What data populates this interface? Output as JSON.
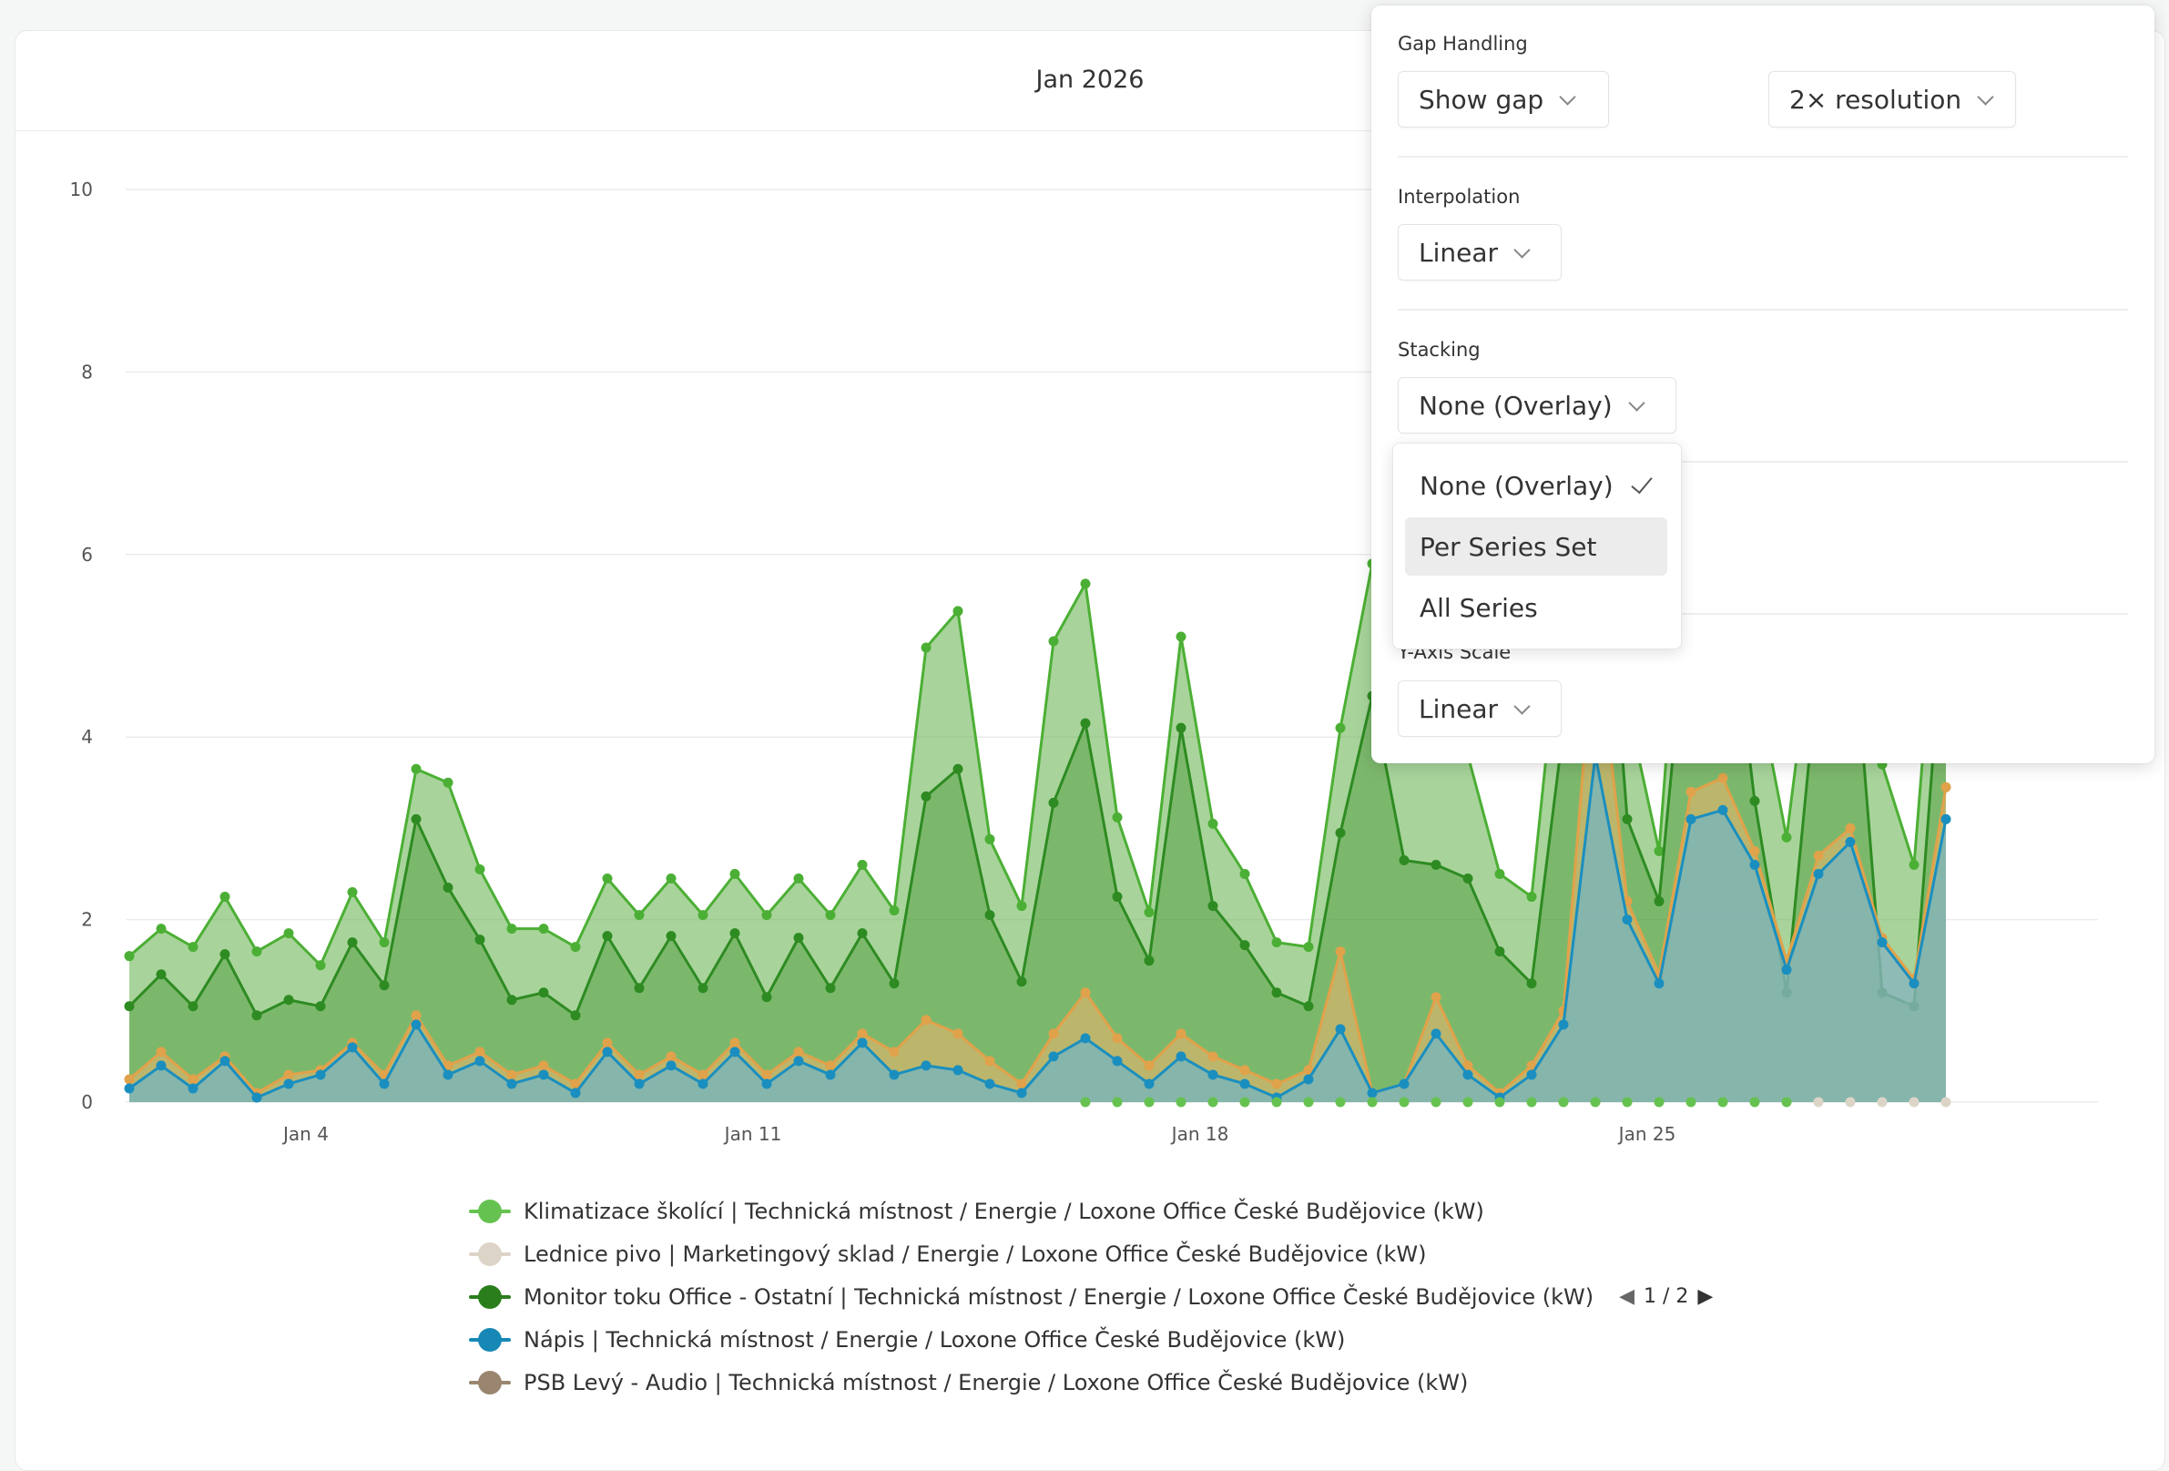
{
  "chart_title": "Jan 2026",
  "chart_data": {
    "type": "area",
    "ylim": [
      0,
      10
    ],
    "y_ticks": [
      "0",
      "2",
      "4",
      "6",
      "8",
      "10"
    ],
    "x_ticks": [
      "Jan  4",
      "Jan 11",
      "Jan 18",
      "Jan 25"
    ],
    "grid": true,
    "stacking": "None (Overlay)",
    "series": [
      {
        "name": "Klimatizace školící | Technická místnost / Energie / Loxone Office České Budějovice (kW)",
        "color": "#4caf35",
        "values": [
          1.6,
          1.9,
          1.7,
          2.25,
          1.65,
          1.85,
          1.5,
          2.3,
          1.75,
          3.65,
          3.5,
          2.55,
          1.9,
          1.9,
          1.7,
          2.45,
          2.05,
          2.45,
          2.05,
          2.5,
          2.05,
          2.45,
          2.05,
          2.6,
          2.1,
          4.98,
          5.38,
          2.88,
          2.15,
          5.05,
          5.68,
          3.12,
          2.08,
          5.1,
          3.05,
          2.5,
          1.75,
          1.7,
          4.1,
          5.9,
          4.1,
          4.55,
          3.8,
          2.5,
          2.25,
          5.6,
          9.35,
          4.35,
          2.75,
          7.3,
          7.65,
          4.7,
          2.9,
          5.65,
          6.75,
          3.7,
          2.6,
          6.95
        ]
      },
      {
        "name": "Monitor toku Office - Ostatní | Technická místnost / Energie / Loxone Office České Budějovice (kW)",
        "color": "#2e8b22",
        "values": [
          1.05,
          1.4,
          1.05,
          1.62,
          0.95,
          1.12,
          1.05,
          1.75,
          1.28,
          3.1,
          2.35,
          1.78,
          1.12,
          1.2,
          0.95,
          1.82,
          1.25,
          1.82,
          1.25,
          1.85,
          1.15,
          1.8,
          1.25,
          1.85,
          1.3,
          3.35,
          3.65,
          2.05,
          1.32,
          3.28,
          4.15,
          2.25,
          1.55,
          4.1,
          2.15,
          1.72,
          1.2,
          1.05,
          2.95,
          4.45,
          2.65,
          2.6,
          2.45,
          1.65,
          1.3,
          4.1,
          7.7,
          3.1,
          2.2,
          5.85,
          6.2,
          3.3,
          1.2,
          4.8,
          5.6,
          1.2,
          1.05,
          5.65
        ]
      },
      {
        "name": "Nápis | Technická místnost / Energie / Loxone Office České Budějovice (kW)",
        "color": "#1a8fbf",
        "values": [
          0.15,
          0.4,
          0.15,
          0.45,
          0.05,
          0.2,
          0.3,
          0.6,
          0.2,
          0.85,
          0.3,
          0.45,
          0.2,
          0.3,
          0.1,
          0.55,
          0.2,
          0.4,
          0.2,
          0.55,
          0.2,
          0.45,
          0.3,
          0.65,
          0.3,
          0.4,
          0.35,
          0.2,
          0.1,
          0.5,
          0.7,
          0.45,
          0.2,
          0.5,
          0.3,
          0.2,
          0.05,
          0.25,
          0.8,
          0.1,
          0.2,
          0.75,
          0.3,
          0.05,
          0.3,
          0.85,
          3.8,
          2.0,
          1.3,
          3.1,
          3.2,
          2.6,
          1.45,
          2.5,
          2.85,
          1.75,
          1.3,
          3.1
        ]
      },
      {
        "name": "Lednice pivo | Marketingový sklad / Energie / Loxone Office České Budějovice (kW)",
        "color": "#e0a24a",
        "values": [
          0.25,
          0.55,
          0.25,
          0.5,
          0.1,
          0.3,
          0.35,
          0.65,
          0.3,
          0.95,
          0.4,
          0.55,
          0.3,
          0.4,
          0.2,
          0.65,
          0.3,
          0.5,
          0.3,
          0.65,
          0.3,
          0.55,
          0.4,
          0.75,
          0.55,
          0.9,
          0.75,
          0.45,
          0.2,
          0.75,
          1.2,
          0.7,
          0.4,
          0.75,
          0.5,
          0.35,
          0.2,
          0.35,
          1.65,
          0.1,
          0.2,
          1.15,
          0.4,
          0.1,
          0.4,
          1.0,
          5.3,
          2.2,
          1.4,
          3.4,
          3.55,
          2.75,
          1.55,
          2.7,
          3.0,
          1.8,
          1.35,
          3.45
        ]
      },
      {
        "name": "PSB Levý - Audio | Technická místnost / Energie / Loxone Office České Budějovice (kW)",
        "color": "#9b8a73",
        "values": []
      }
    ]
  },
  "legend": {
    "items": [
      {
        "label": "Klimatizace školící | Technická místnost / Energie / Loxone Office České Budějovice (kW)",
        "color": "#66c250",
        "line": "#66c250"
      },
      {
        "label": "Lednice pivo | Marketingový sklad / Energie / Loxone Office České Budějovice (kW)",
        "color": "#ddd4c8",
        "line": "#ddd4c8"
      },
      {
        "label": "Monitor toku Office - Ostatní | Technická místnost / Energie / Loxone Office České Budějovice (kW)",
        "color": "#2a7f1c",
        "line": "#2a7f1c"
      },
      {
        "label": "Nápis | Technická místnost / Energie / Loxone Office České Budějovice (kW)",
        "color": "#1788b5",
        "line": "#1788b5"
      },
      {
        "label": "PSB Levý - Audio | Technická místnost / Energie / Loxone Office České Budějovice (kW)",
        "color": "#9a8670",
        "line": "#9a8670"
      }
    ],
    "page": "1 / 2",
    "prev_icon": "◀",
    "next_icon": "▶"
  },
  "panel": {
    "gap_label": "Gap Handling",
    "gap_value": "Show gap",
    "resolution_value": "2× resolution",
    "interp_label": "Interpolation",
    "interp_value": "Linear",
    "stacking_label": "Stacking",
    "stacking_value": "None (Overlay)",
    "yscale_label": "Y-Axis Scale",
    "yscale_value": "Linear"
  },
  "dropdown": {
    "options": [
      "None (Overlay)",
      "Per Series Set",
      "All Series"
    ],
    "selected": "None (Overlay)",
    "highlighted": "Per Series Set"
  }
}
